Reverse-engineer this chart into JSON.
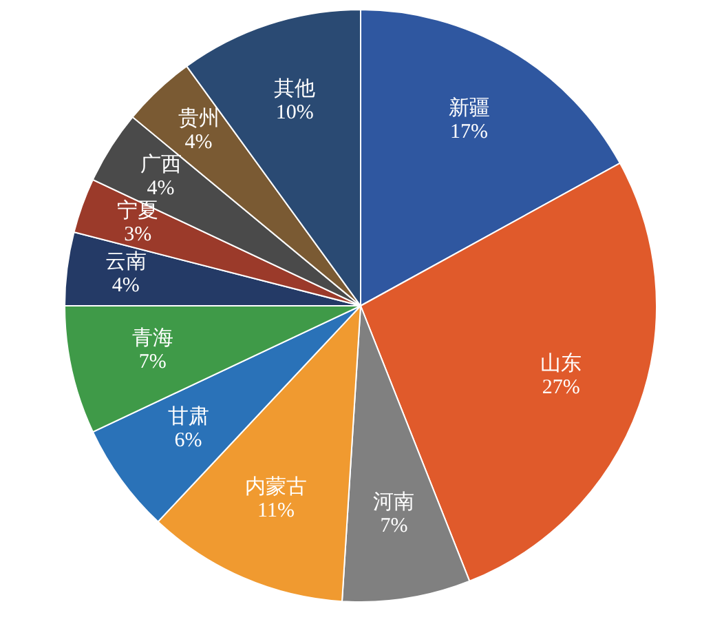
{
  "chart_data": {
    "type": "pie",
    "categories": [
      "新疆",
      "山东",
      "河南",
      "内蒙古",
      "甘肃",
      "青海",
      "云南",
      "宁夏",
      "广西",
      "贵州",
      "其他"
    ],
    "values": [
      17,
      27,
      7,
      11,
      6,
      7,
      4,
      3,
      4,
      4,
      10
    ],
    "value_labels": [
      "17%",
      "27%",
      "7%",
      "11%",
      "6%",
      "7%",
      "4%",
      "3%",
      "4%",
      "4%",
      "10%"
    ],
    "colors": [
      "#2f57a0",
      "#e05a2b",
      "#808080",
      "#f09a30",
      "#2a72b8",
      "#3f9a48",
      "#243a66",
      "#9b3a2a",
      "#4a4a4a",
      "#7a5a33",
      "#2a4a73"
    ],
    "legend": false
  }
}
